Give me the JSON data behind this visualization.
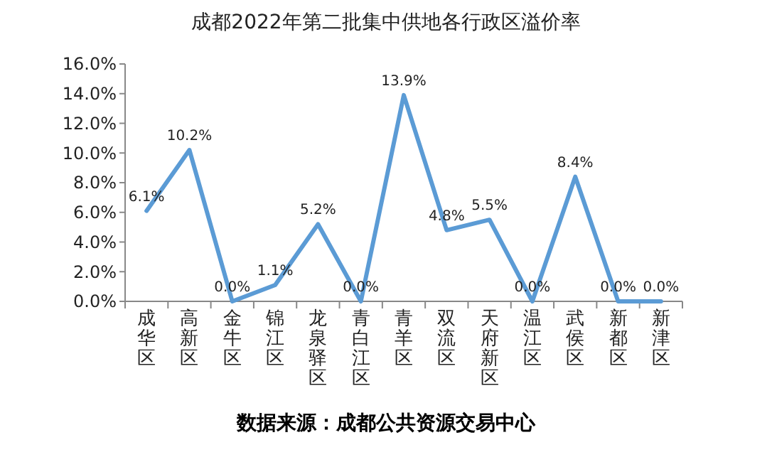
{
  "chart_data": {
    "type": "line",
    "title": "成都2022年第二批集中供地各行政区溢价率",
    "categories": [
      "成华区",
      "高新区",
      "金牛区",
      "锦江区",
      "龙泉驿区",
      "青白江区",
      "青羊区",
      "双流区",
      "天府新区",
      "温江区",
      "武侯区",
      "新都区",
      "新津区"
    ],
    "series": [
      {
        "color": "#5b9bd5",
        "values": [
          6.1,
          10.2,
          0.0,
          1.1,
          5.2,
          0.0,
          13.9,
          4.8,
          5.5,
          0.0,
          8.4,
          0.0,
          0.0
        ]
      }
    ],
    "ylim": [
      0,
      16
    ],
    "yticks": [
      {
        "value": 0,
        "label": "0.0%"
      },
      {
        "value": 2,
        "label": "2.0%"
      },
      {
        "value": 4,
        "label": "4.0%"
      },
      {
        "value": 6,
        "label": "6.0%"
      },
      {
        "value": 8,
        "label": "8.0%"
      },
      {
        "value": 10,
        "label": "10.0%"
      },
      {
        "value": 12,
        "label": "12.0%"
      },
      {
        "value": 14,
        "label": "14.0%"
      },
      {
        "value": 16,
        "label": "16.0%"
      }
    ],
    "value_labels": [
      "6.1%",
      "10.2%",
      "0.0%",
      "1.1%",
      "5.2%",
      "0.0%",
      "13.9%",
      "4.8%",
      "5.5%",
      "0.0%",
      "8.4%",
      "0.0%",
      "0.0%"
    ],
    "marker": "none",
    "line_style": "solid",
    "grid": false,
    "annotations": [
      "数据来源：成都公共资源交易中心"
    ]
  }
}
